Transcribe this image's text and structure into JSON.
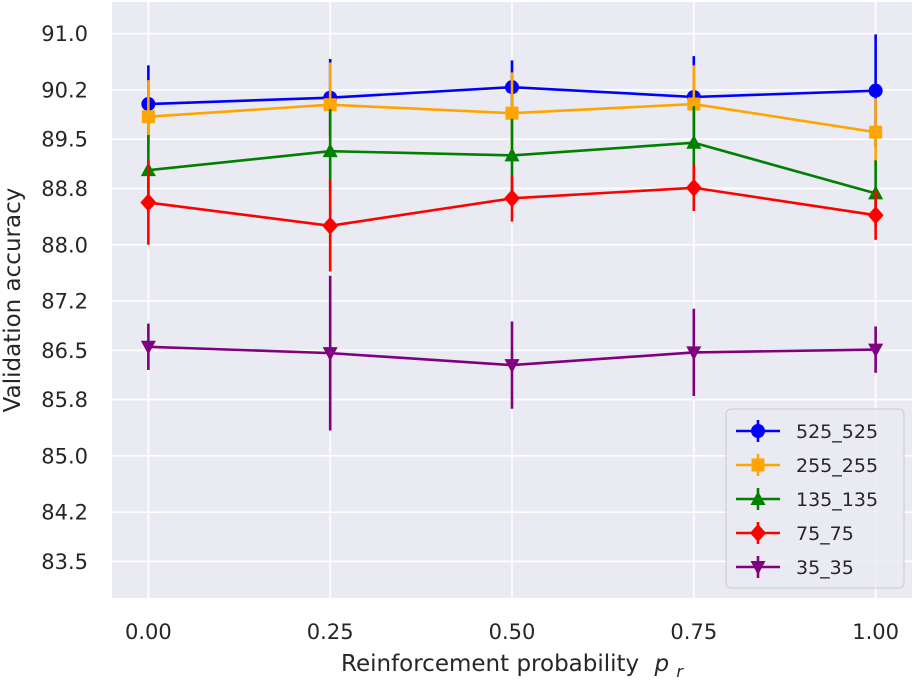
{
  "chart_data": {
    "type": "line",
    "title": "",
    "xlabel": "Reinforcement probability",
    "xlabel_math": "p",
    "xlabel_sub": "r",
    "ylabel": "Validation accuracy",
    "x": [
      0.0,
      0.25,
      0.5,
      0.75,
      1.0
    ],
    "x_tick_labels": [
      "0.00",
      "0.25",
      "0.50",
      "0.75",
      "1.00"
    ],
    "xlim": [
      -0.05,
      1.05
    ],
    "ylim": [
      82.98,
      91.45
    ],
    "y_ticks": [
      83.5,
      84.2,
      85.0,
      85.8,
      86.5,
      87.2,
      88.0,
      88.8,
      89.5,
      90.2,
      91.0
    ],
    "y_tick_labels": [
      "83.5",
      "84.2",
      "85.0",
      "85.8",
      "86.5",
      "87.2",
      "88.0",
      "88.8",
      "89.5",
      "90.2",
      "91.0"
    ],
    "grid": true,
    "legend_position": "bottom-right",
    "series": [
      {
        "name": "525_525",
        "color": "#0000ff",
        "marker": "circle",
        "values": [
          90.0,
          90.09,
          90.24,
          90.1,
          90.19
        ],
        "error": [
          0.55,
          0.55,
          0.38,
          0.58,
          0.8
        ]
      },
      {
        "name": "255_255",
        "color": "#ffa500",
        "marker": "square",
        "values": [
          89.82,
          89.99,
          89.87,
          90.0,
          89.6
        ],
        "error": [
          0.52,
          0.6,
          0.58,
          0.55,
          0.48
        ]
      },
      {
        "name": "135_135",
        "color": "#008000",
        "marker": "triangle-up",
        "values": [
          89.06,
          89.33,
          89.27,
          89.45,
          88.73
        ],
        "error": [
          0.5,
          0.6,
          0.52,
          0.52,
          0.47
        ]
      },
      {
        "name": "75_75",
        "color": "#ff0000",
        "marker": "diamond",
        "values": [
          88.6,
          88.27,
          88.66,
          88.81,
          88.42
        ],
        "error": [
          0.6,
          0.65,
          0.33,
          0.33,
          0.35
        ]
      },
      {
        "name": "35_35",
        "color": "#800080",
        "marker": "triangle-down",
        "values": [
          86.55,
          86.46,
          86.29,
          86.47,
          86.51
        ],
        "error": [
          0.33,
          1.1,
          0.62,
          0.62,
          0.33
        ]
      }
    ]
  }
}
